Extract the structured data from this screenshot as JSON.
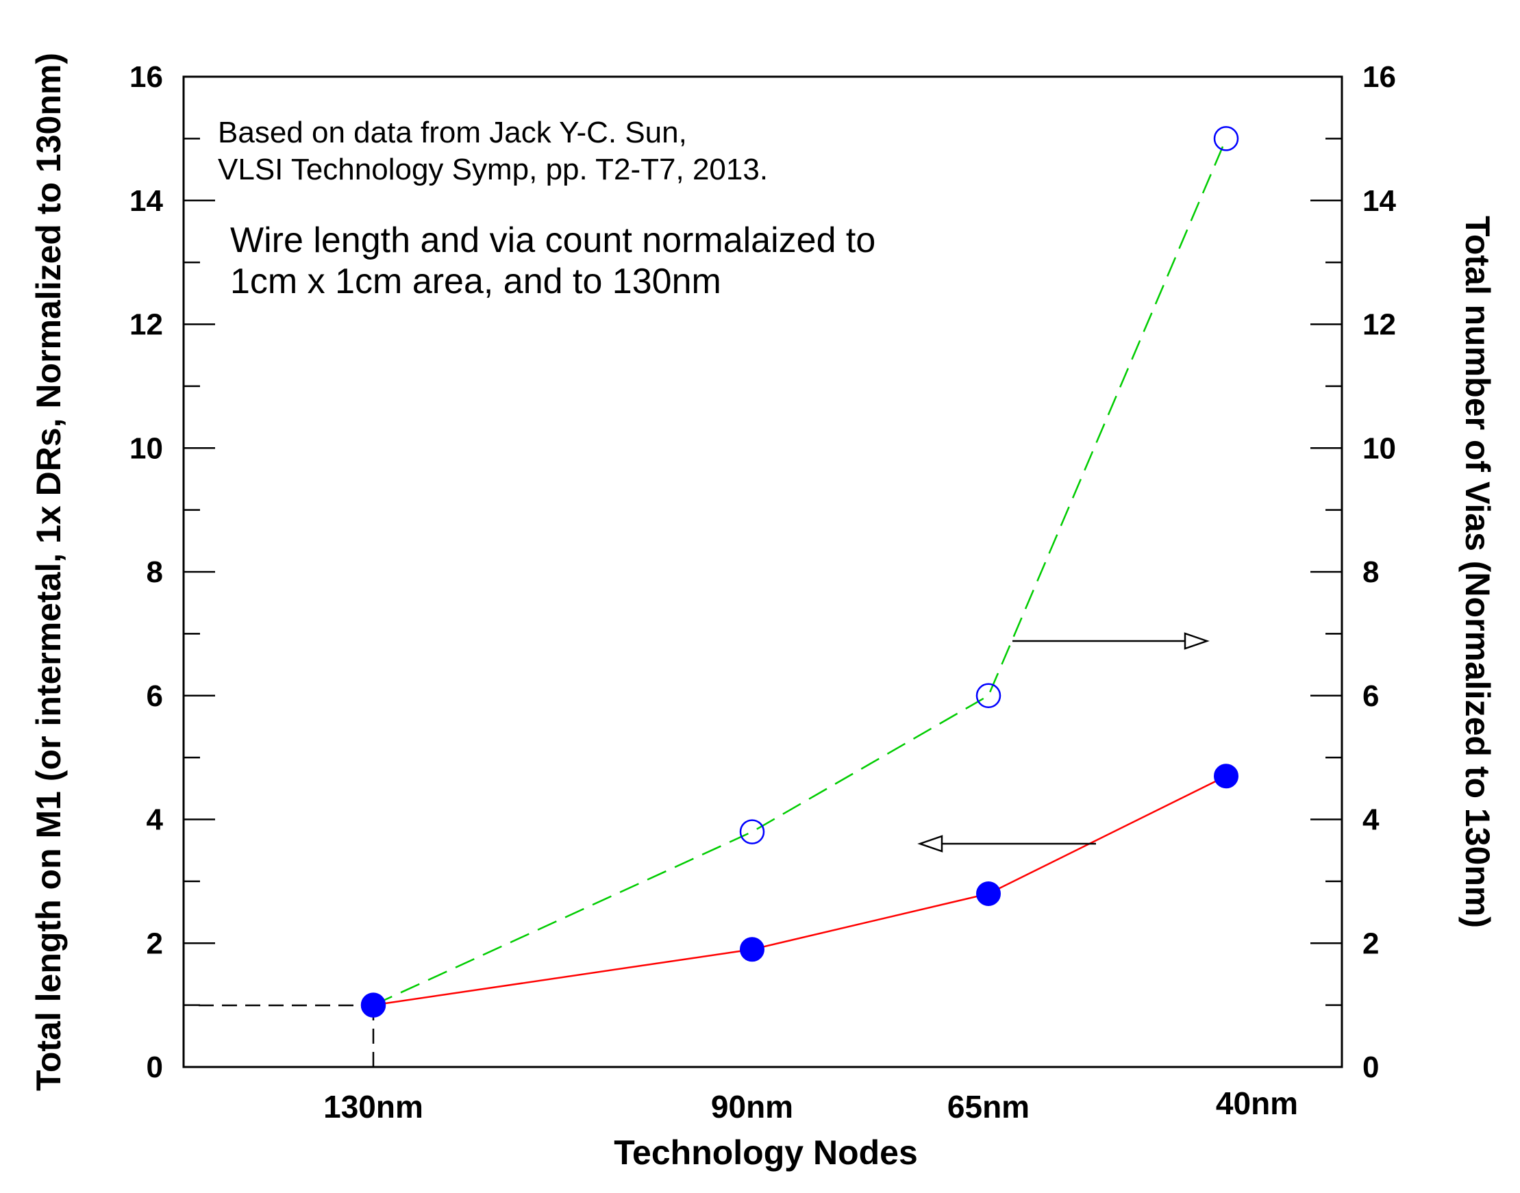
{
  "chart_data": {
    "type": "line",
    "categories": [
      "130nm",
      "90nm",
      "65nm",
      "40nm"
    ],
    "x": [
      130,
      90,
      65,
      40
    ],
    "xlabel": "Technology Nodes",
    "ylabel_left": "Total length on M1 (or intermetal, 1x DRs, Normalized to 130nm)",
    "ylabel_right": "Total number of Vias (Normalized to 130nm)",
    "ylim": [
      0,
      16
    ],
    "yticks": [
      0,
      2,
      4,
      6,
      8,
      10,
      12,
      14,
      16
    ],
    "grid": false,
    "series": [
      {
        "axis": "left",
        "values": [
          1.0,
          1.9,
          2.8,
          4.7
        ],
        "color": "#ff0000",
        "marker": "filled-circle",
        "marker_color": "#0000ff",
        "line_style": "solid"
      },
      {
        "axis": "right",
        "values": [
          1.0,
          3.8,
          6.0,
          15.0
        ],
        "color": "#00cc00",
        "marker": "open-circle",
        "marker_color": "#0000ff",
        "line_style": "dashed"
      }
    ],
    "annotations": {
      "source_line1": "Based on data from Jack Y-C. Sun,",
      "source_line2": "VLSI Technology Symp, pp. T2-T7, 2013.",
      "note_line1": "Wire length and via count normalaized to",
      "note_line2": "1cm x 1cm area, and to 130nm"
    }
  }
}
